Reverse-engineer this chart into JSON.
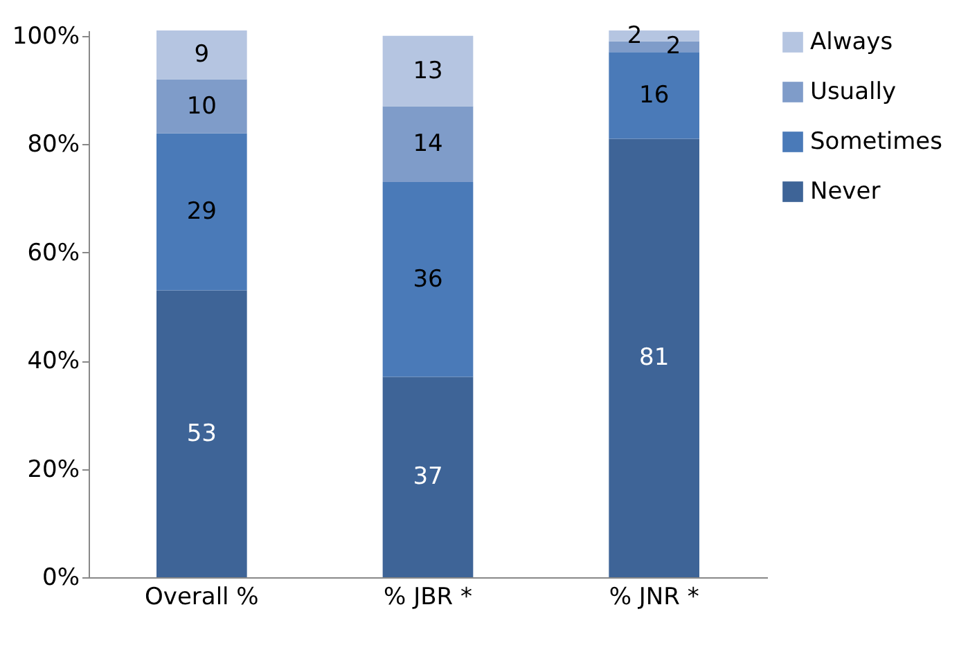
{
  "chart_data": {
    "type": "bar",
    "stacked": true,
    "categories": [
      "Overall %",
      "% JBR *",
      "% JNR *"
    ],
    "series": [
      {
        "name": "Never",
        "color": "#3e6497",
        "values": [
          53,
          37,
          81
        ]
      },
      {
        "name": "Sometimes",
        "color": "#4a7ab8",
        "values": [
          29,
          36,
          16
        ]
      },
      {
        "name": "Usually",
        "color": "#7f9cc9",
        "values": [
          10,
          14,
          2
        ]
      },
      {
        "name": "Always",
        "color": "#b5c5e1",
        "values": [
          9,
          13,
          2
        ]
      }
    ],
    "ylim": [
      0,
      101
    ],
    "yticks": [
      {
        "value": 0,
        "label": "0%"
      },
      {
        "value": 20,
        "label": "20%"
      },
      {
        "value": 40,
        "label": "40%"
      },
      {
        "value": 60,
        "label": "60%"
      },
      {
        "value": 80,
        "label": "80%"
      },
      {
        "value": 100,
        "label": "100%"
      }
    ],
    "data_labels": true,
    "grid": false,
    "legend": "right"
  }
}
